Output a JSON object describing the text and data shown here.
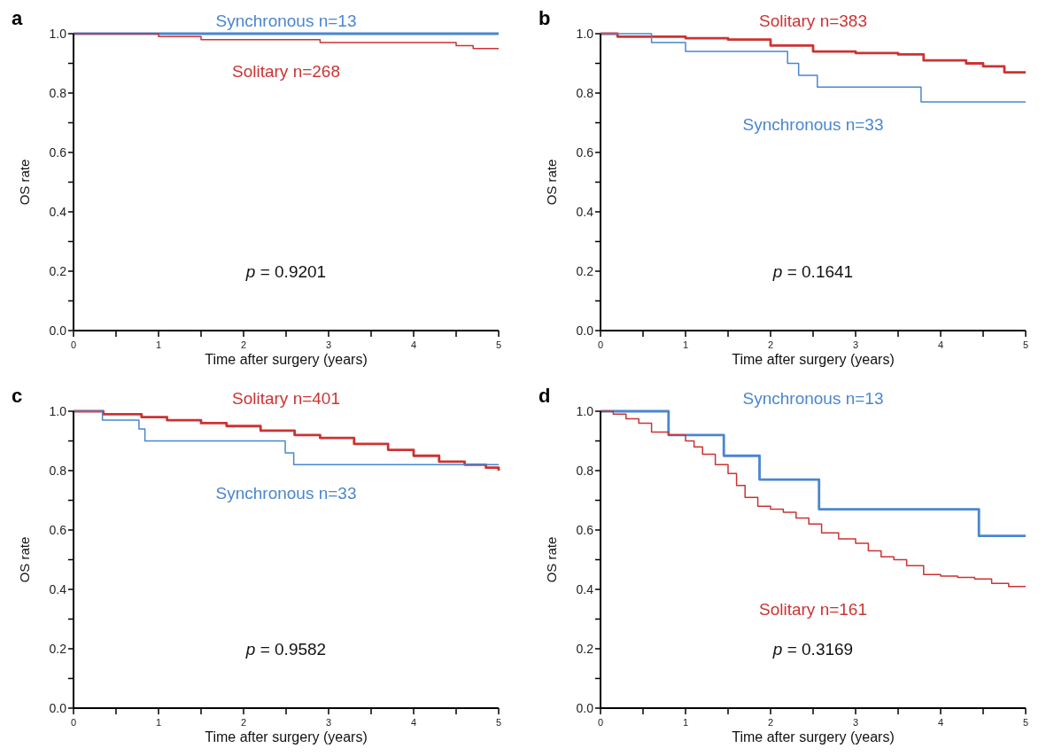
{
  "chart_data": [
    {
      "type": "step",
      "title": "a",
      "xlabel": "Time after surgery (years)",
      "ylabel": "OS rate",
      "annotations": [
        "p = 0.9201"
      ],
      "xlim": [
        0,
        5
      ],
      "ylim": [
        0,
        1
      ],
      "xticks": [
        0,
        {
          "value": 0.5,
          "label": null
        },
        1,
        {
          "value": 1.5,
          "label": null
        },
        2,
        {
          "value": 2.5,
          "label": null
        },
        3,
        {
          "value": 3.5,
          "label": null
        },
        4,
        {
          "value": 4.5,
          "label": null
        },
        5
      ],
      "yticks": [
        {
          "value": 0,
          "label": "0.0"
        },
        {
          "value": 0.1,
          "label": null
        },
        {
          "value": 0.2,
          "label": "0.2"
        },
        {
          "value": 0.3,
          "label": null
        },
        {
          "value": 0.4,
          "label": "0.4"
        },
        {
          "value": 0.5,
          "label": null
        },
        {
          "value": 0.6,
          "label": "0.6"
        },
        {
          "value": 0.7,
          "label": null
        },
        {
          "value": 0.8,
          "label": "0.8"
        },
        {
          "value": 0.9,
          "label": null
        },
        {
          "value": 1,
          "label": "1.0"
        }
      ],
      "series": [
        {
          "name": "Synchronous n=13",
          "color": "#4a86d0",
          "x": [
            0,
            5
          ],
          "values": [
            1,
            1
          ]
        },
        {
          "name": "Solitary n=268",
          "color": "#cc3333",
          "x": [
            0,
            1,
            1.5,
            2.9,
            3.5,
            4.5,
            4.7,
            5
          ],
          "values": [
            1,
            0.99,
            0.98,
            0.97,
            0.97,
            0.96,
            0.95,
            0.95
          ]
        }
      ]
    },
    {
      "type": "step",
      "title": "b",
      "xlabel": "Time after surgery (years)",
      "ylabel": "OS rate",
      "annotations": [
        "p = 0.1641"
      ],
      "xlim": [
        0,
        5
      ],
      "ylim": [
        0,
        1
      ],
      "xticks": [
        0,
        {
          "value": 0.5,
          "label": null
        },
        1,
        {
          "value": 1.5,
          "label": null
        },
        2,
        {
          "value": 2.5,
          "label": null
        },
        3,
        {
          "value": 3.5,
          "label": null
        },
        4,
        {
          "value": 4.5,
          "label": null
        },
        5
      ],
      "yticks": [
        {
          "value": 0,
          "label": "0.0"
        },
        {
          "value": 0.1,
          "label": null
        },
        {
          "value": 0.2,
          "label": "0.2"
        },
        {
          "value": 0.3,
          "label": null
        },
        {
          "value": 0.4,
          "label": "0.4"
        },
        {
          "value": 0.5,
          "label": null
        },
        {
          "value": 0.6,
          "label": "0.6"
        },
        {
          "value": 0.7,
          "label": null
        },
        {
          "value": 0.8,
          "label": "0.8"
        },
        {
          "value": 0.9,
          "label": null
        },
        {
          "value": 1,
          "label": "1.0"
        }
      ],
      "series": [
        {
          "name": "Solitary n=383",
          "color": "#cc3333",
          "x": [
            0,
            0.2,
            1,
            1.5,
            2,
            2.5,
            3,
            3.5,
            3.8,
            4.3,
            4.5,
            4.75,
            5
          ],
          "values": [
            1,
            0.99,
            0.985,
            0.98,
            0.96,
            0.94,
            0.935,
            0.93,
            0.91,
            0.9,
            0.89,
            0.87,
            0.87
          ]
        },
        {
          "name": "Synchronous n=33",
          "color": "#4a86d0",
          "x": [
            0,
            0.6,
            1,
            2.2,
            2.33,
            2.55,
            3.77,
            5
          ],
          "values": [
            1,
            0.97,
            0.94,
            0.9,
            0.86,
            0.82,
            0.77,
            0.77
          ]
        }
      ]
    },
    {
      "type": "step",
      "title": "c",
      "xlabel": "Time after surgery (years)",
      "ylabel": "OS rate",
      "annotations": [
        "p = 0.9582"
      ],
      "xlim": [
        0,
        5
      ],
      "ylim": [
        0,
        1
      ],
      "xticks": [
        0,
        {
          "value": 0.5,
          "label": null
        },
        1,
        {
          "value": 1.5,
          "label": null
        },
        2,
        {
          "value": 2.5,
          "label": null
        },
        3,
        {
          "value": 3.5,
          "label": null
        },
        4,
        {
          "value": 4.5,
          "label": null
        },
        5
      ],
      "yticks": [
        {
          "value": 0,
          "label": "0.0"
        },
        {
          "value": 0.1,
          "label": null
        },
        {
          "value": 0.2,
          "label": "0.2"
        },
        {
          "value": 0.3,
          "label": null
        },
        {
          "value": 0.4,
          "label": "0.4"
        },
        {
          "value": 0.5,
          "label": null
        },
        {
          "value": 0.6,
          "label": "0.6"
        },
        {
          "value": 0.7,
          "label": null
        },
        {
          "value": 0.8,
          "label": "0.8"
        },
        {
          "value": 0.9,
          "label": null
        },
        {
          "value": 1,
          "label": "1.0"
        }
      ],
      "series": [
        {
          "name": "Solitary n=401",
          "color": "#cc3333",
          "x": [
            0,
            0.35,
            0.8,
            1.1,
            1.5,
            1.8,
            2.2,
            2.6,
            2.9,
            3.3,
            3.7,
            4,
            4.3,
            4.6,
            4.85,
            5
          ],
          "values": [
            1,
            0.99,
            0.98,
            0.97,
            0.96,
            0.95,
            0.935,
            0.92,
            0.91,
            0.89,
            0.87,
            0.85,
            0.83,
            0.82,
            0.81,
            0.8
          ]
        },
        {
          "name": "Synchronous n=33",
          "color": "#4a86d0",
          "x": [
            0,
            0.34,
            0.77,
            0.84,
            2.49,
            2.59,
            5
          ],
          "values": [
            1,
            0.97,
            0.94,
            0.9,
            0.86,
            0.82,
            0.82
          ]
        }
      ]
    },
    {
      "type": "step",
      "title": "d",
      "xlabel": "Time after surgery (years)",
      "ylabel": "OS rate",
      "annotations": [
        "p = 0.3169"
      ],
      "xlim": [
        0,
        5
      ],
      "ylim": [
        0,
        1
      ],
      "xticks": [
        0,
        {
          "value": 0.5,
          "label": null
        },
        1,
        {
          "value": 1.5,
          "label": null
        },
        2,
        {
          "value": 2.5,
          "label": null
        },
        3,
        {
          "value": 3.5,
          "label": null
        },
        4,
        {
          "value": 4.5,
          "label": null
        },
        5
      ],
      "yticks": [
        {
          "value": 0,
          "label": "0.0"
        },
        {
          "value": 0.1,
          "label": null
        },
        {
          "value": 0.2,
          "label": "0.2"
        },
        {
          "value": 0.3,
          "label": null
        },
        {
          "value": 0.4,
          "label": "0.4"
        },
        {
          "value": 0.5,
          "label": null
        },
        {
          "value": 0.6,
          "label": "0.6"
        },
        {
          "value": 0.7,
          "label": null
        },
        {
          "value": 0.8,
          "label": "0.8"
        },
        {
          "value": 0.9,
          "label": null
        },
        {
          "value": 1,
          "label": "1.0"
        }
      ],
      "series": [
        {
          "name": "Synchronous n=13",
          "color": "#4a86d0",
          "x": [
            0,
            0.8,
            1.45,
            1.87,
            2.57,
            4.45,
            5
          ],
          "values": [
            1,
            0.92,
            0.85,
            0.77,
            0.67,
            0.58,
            0.58
          ]
        },
        {
          "name": "Solitary n=161",
          "color": "#cc3333",
          "x": [
            0,
            0.15,
            0.3,
            0.45,
            0.6,
            0.8,
            1,
            1.1,
            1.2,
            1.35,
            1.5,
            1.6,
            1.7,
            1.85,
            2,
            2.15,
            2.3,
            2.45,
            2.6,
            2.8,
            3,
            3.15,
            3.3,
            3.45,
            3.6,
            3.8,
            4,
            4.2,
            4.4,
            4.6,
            4.8,
            5
          ],
          "values": [
            1,
            0.99,
            0.975,
            0.96,
            0.93,
            0.92,
            0.9,
            0.88,
            0.855,
            0.82,
            0.79,
            0.75,
            0.71,
            0.68,
            0.67,
            0.66,
            0.64,
            0.62,
            0.59,
            0.57,
            0.555,
            0.53,
            0.51,
            0.5,
            0.48,
            0.45,
            0.445,
            0.44,
            0.435,
            0.42,
            0.41,
            0.41
          ]
        }
      ]
    }
  ]
}
